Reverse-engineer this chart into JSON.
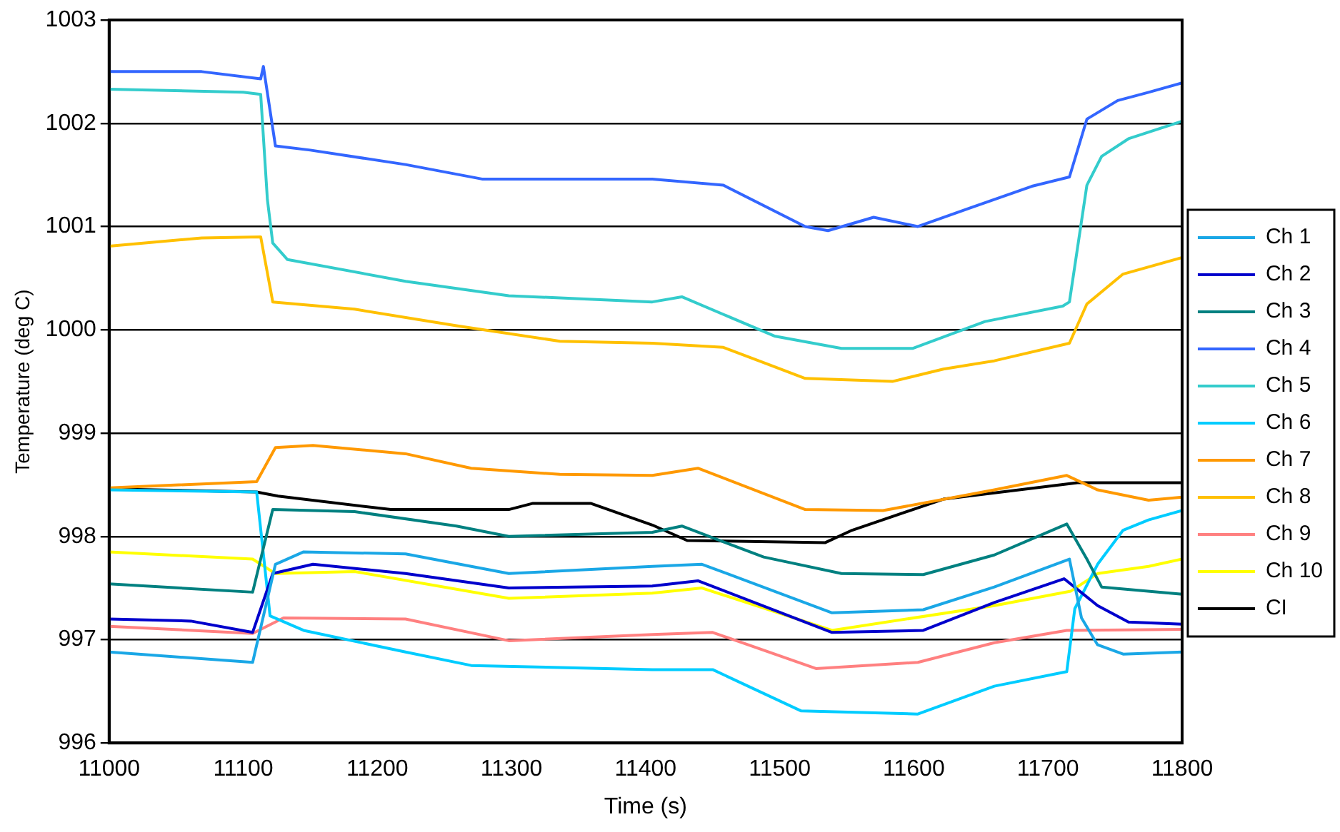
{
  "chart_data": {
    "type": "line",
    "xlabel": "Time (s)",
    "ylabel": "Temperature (deg C)",
    "xlim": [
      11000,
      11800
    ],
    "xticks": [
      11000,
      11100,
      11200,
      11300,
      11400,
      11500,
      11600,
      11700,
      11800
    ],
    "ylim": [
      996,
      1003
    ],
    "yticks": [
      996,
      997,
      998,
      999,
      1000,
      1001,
      1002,
      1003
    ],
    "grid": "y",
    "legend": "right",
    "marker": "none",
    "line_style": "solid",
    "series": [
      {
        "name": "Ch 1",
        "color": "#1aa7e6",
        "x": [
          11000,
          11107,
          11124,
          11145,
          11221,
          11298,
          11405,
          11442,
          11539,
          11607,
          11660,
          11716,
          11725,
          11737,
          11756,
          11800
        ],
        "values": [
          996.88,
          996.78,
          997.73,
          997.85,
          997.83,
          997.64,
          997.71,
          997.73,
          997.26,
          997.29,
          997.51,
          997.78,
          997.21,
          996.95,
          996.86,
          996.88
        ]
      },
      {
        "name": "Ch 2",
        "color": "#0000cc",
        "x": [
          11000,
          11061,
          11107,
          11122,
          11152,
          11221,
          11298,
          11405,
          11439,
          11539,
          11607,
          11660,
          11712,
          11737,
          11760,
          11800
        ],
        "values": [
          997.2,
          997.18,
          997.07,
          997.64,
          997.73,
          997.64,
          997.5,
          997.52,
          997.57,
          997.07,
          997.09,
          997.36,
          997.59,
          997.33,
          997.17,
          997.15
        ]
      },
      {
        "name": "Ch 3",
        "color": "#008080",
        "x": [
          11000,
          11107,
          11122,
          11183,
          11259,
          11298,
          11405,
          11427,
          11488,
          11546,
          11607,
          11660,
          11714,
          11729,
          11740,
          11800
        ],
        "values": [
          997.54,
          997.46,
          998.26,
          998.24,
          998.1,
          998.0,
          998.04,
          998.1,
          997.8,
          997.64,
          997.63,
          997.82,
          998.12,
          997.78,
          997.51,
          997.44
        ]
      },
      {
        "name": "Ch 4",
        "color": "#3366ff",
        "x": [
          11000,
          11069,
          11113,
          11115,
          11124,
          11150,
          11221,
          11278,
          11405,
          11458,
          11519,
          11536,
          11570,
          11603,
          11642,
          11688,
          11716,
          11729,
          11752,
          11775,
          11800
        ],
        "values": [
          1002.5,
          1002.5,
          1002.43,
          1002.55,
          1001.78,
          1001.74,
          1001.6,
          1001.46,
          1001.46,
          1001.4,
          1001.0,
          1000.96,
          1001.09,
          1001.0,
          1001.18,
          1001.39,
          1001.48,
          1002.04,
          1002.22,
          1002.3,
          1002.39
        ]
      },
      {
        "name": "Ch 5",
        "color": "#33cccc",
        "x": [
          11000,
          11100,
          11113,
          11118,
          11122,
          11133,
          11221,
          11298,
          11405,
          11427,
          11496,
          11546,
          11599,
          11653,
          11711,
          11716,
          11729,
          11740,
          11760,
          11800
        ],
        "values": [
          1002.33,
          1002.3,
          1002.28,
          1001.26,
          1000.84,
          1000.68,
          1000.47,
          1000.33,
          1000.27,
          1000.32,
          999.94,
          999.82,
          999.82,
          1000.08,
          1000.23,
          1000.27,
          1001.4,
          1001.68,
          1001.85,
          1002.02
        ]
      },
      {
        "name": "Ch 6",
        "color": "#00ccff",
        "x": [
          11000,
          11110,
          11120,
          11145,
          11221,
          11270,
          11405,
          11450,
          11516,
          11603,
          11660,
          11714,
          11720,
          11737,
          11756,
          11775,
          11800
        ],
        "values": [
          998.45,
          998.43,
          997.23,
          997.09,
          996.88,
          996.75,
          996.71,
          996.71,
          996.31,
          996.28,
          996.55,
          996.69,
          997.3,
          997.73,
          998.06,
          998.16,
          998.25
        ]
      },
      {
        "name": "Ch 7",
        "color": "#ff9900",
        "x": [
          11000,
          11110,
          11124,
          11152,
          11221,
          11270,
          11336,
          11405,
          11439,
          11519,
          11577,
          11660,
          11714,
          11737,
          11775,
          11800
        ],
        "values": [
          998.47,
          998.53,
          998.86,
          998.88,
          998.8,
          998.66,
          998.6,
          998.59,
          998.66,
          998.26,
          998.25,
          998.45,
          998.59,
          998.45,
          998.35,
          998.38
        ]
      },
      {
        "name": "Ch 8",
        "color": "#ffc000",
        "x": [
          11000,
          11069,
          11113,
          11122,
          11183,
          11259,
          11336,
          11405,
          11458,
          11519,
          11584,
          11622,
          11660,
          11716,
          11729,
          11756,
          11800
        ],
        "values": [
          1000.81,
          1000.89,
          1000.9,
          1000.27,
          1000.2,
          1000.04,
          999.89,
          999.87,
          999.83,
          999.53,
          999.5,
          999.62,
          999.7,
          999.87,
          1000.25,
          1000.54,
          1000.7
        ]
      },
      {
        "name": "Ch 9",
        "color": "#ff8080",
        "x": [
          11000,
          11107,
          11130,
          11221,
          11298,
          11405,
          11450,
          11527,
          11603,
          11660,
          11714,
          11800
        ],
        "values": [
          997.13,
          997.06,
          997.21,
          997.2,
          996.99,
          997.05,
          997.07,
          996.72,
          996.78,
          996.97,
          997.09,
          997.1
        ]
      },
      {
        "name": "Ch 10",
        "color": "#ffff00",
        "x": [
          11000,
          11107,
          11124,
          11183,
          11298,
          11405,
          11442,
          11539,
          11660,
          11717,
          11737,
          11775,
          11800
        ],
        "values": [
          997.85,
          997.78,
          997.64,
          997.66,
          997.4,
          997.45,
          997.5,
          997.09,
          997.33,
          997.47,
          997.64,
          997.71,
          997.78
        ]
      },
      {
        "name": "CI",
        "color": "#000000",
        "x": [
          11000,
          11110,
          11126,
          11210,
          11298,
          11316,
          11359,
          11405,
          11431,
          11534,
          11554,
          11622,
          11722,
          11800
        ],
        "values": [
          998.46,
          998.43,
          998.39,
          998.26,
          998.26,
          998.32,
          998.32,
          998.11,
          997.96,
          997.94,
          998.06,
          998.36,
          998.52,
          998.52
        ]
      }
    ]
  }
}
